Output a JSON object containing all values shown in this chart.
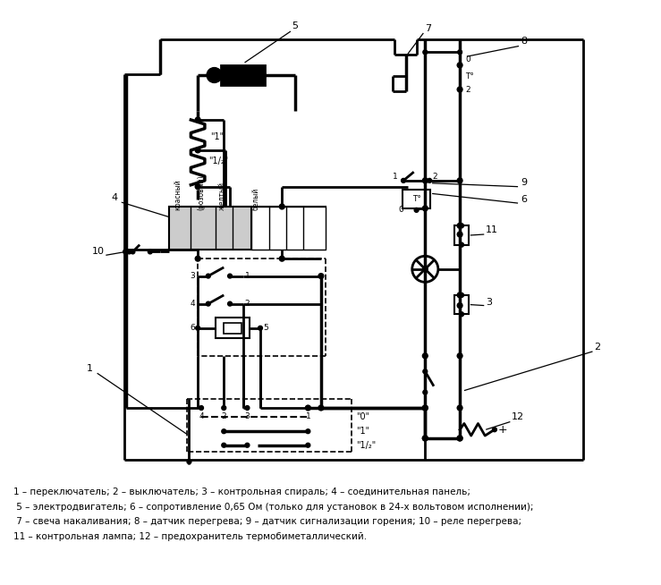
{
  "bg_color": "#ffffff",
  "line_color": "#000000",
  "fig_width": 7.39,
  "fig_height": 6.54,
  "legend_lines": [
    "1 – переключатель; 2 – выключатель; 3 – контрольная спираль; 4 – соединительная панель;",
    " 5 – электродвигатель; 6 – сопротивление 0,65 Ом (только для установок в 24-х вольтовом исполнении);",
    " 7 – свеча накаливания; 8 – датчик перегрева; 9 – датчик сигнализации горения; 10 – реле перегрева;",
    "11 – контрольная лампа; 12 – предохранитель термобиметаллический."
  ]
}
